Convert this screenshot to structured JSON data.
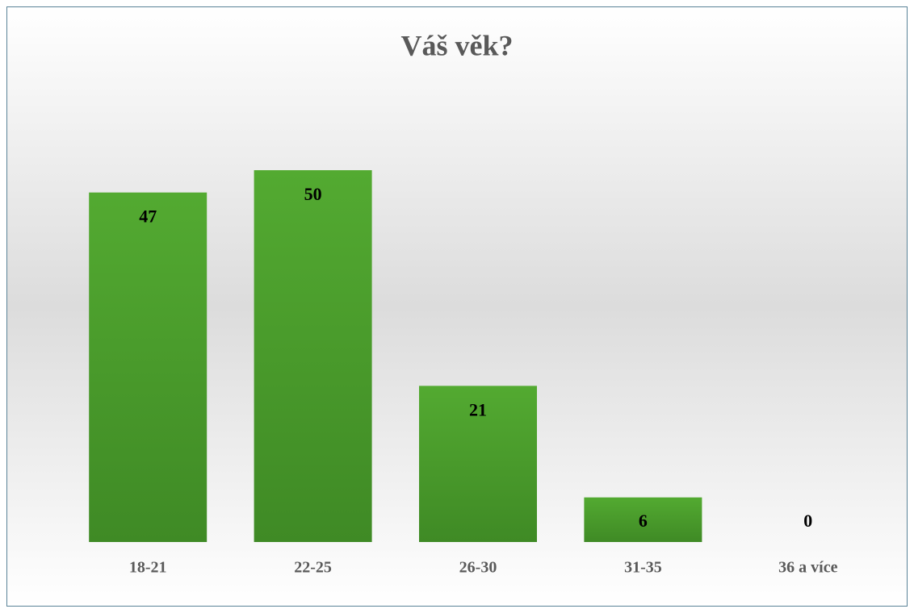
{
  "chart_data": {
    "type": "bar",
    "title": "Váš věk?",
    "categories": [
      "18-21",
      "22-25",
      "26-30",
      "31-35",
      "36 a více"
    ],
    "values": [
      47,
      50,
      21,
      6,
      0
    ],
    "color": "#4ea72e"
  }
}
